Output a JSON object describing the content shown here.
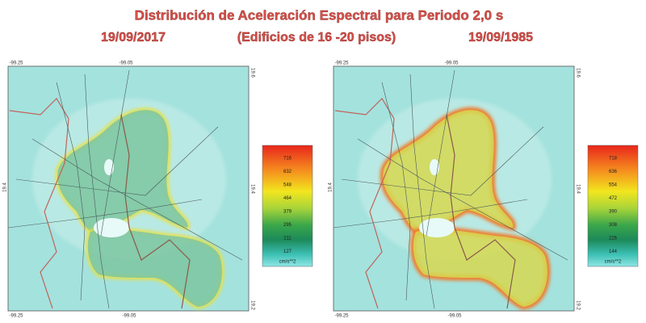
{
  "header": {
    "title": "Distribución de Aceleración Espectral para Periodo 2,0 s",
    "date_left": "19/09/2017",
    "subtitle": "(Edificios de 16 -20 pisos)",
    "date_right": "19/09/1985"
  },
  "maps": [
    {
      "axis_labels": {
        "top": [
          "-99.25",
          "-99.05"
        ],
        "bottom": [
          "-99.25",
          "-99.05"
        ],
        "left": [
          "19.4"
        ],
        "right": [
          "19.6",
          "19.4",
          "19.2"
        ]
      },
      "colorbar": {
        "labels": [
          716,
          632,
          548,
          464,
          379,
          295,
          211,
          127
        ],
        "unit": "cm/s**2"
      }
    },
    {
      "axis_labels": {
        "top": [
          "-99.25",
          "-99.05"
        ],
        "bottom": [
          "-99.25",
          "-99.05"
        ],
        "left": [
          "19.4"
        ],
        "right": [
          "19.6",
          "19.4",
          "19.2"
        ]
      },
      "colorbar": {
        "labels": [
          718,
          636,
          554,
          472,
          390,
          308,
          226,
          144
        ],
        "unit": "cm/s**2"
      }
    }
  ]
}
